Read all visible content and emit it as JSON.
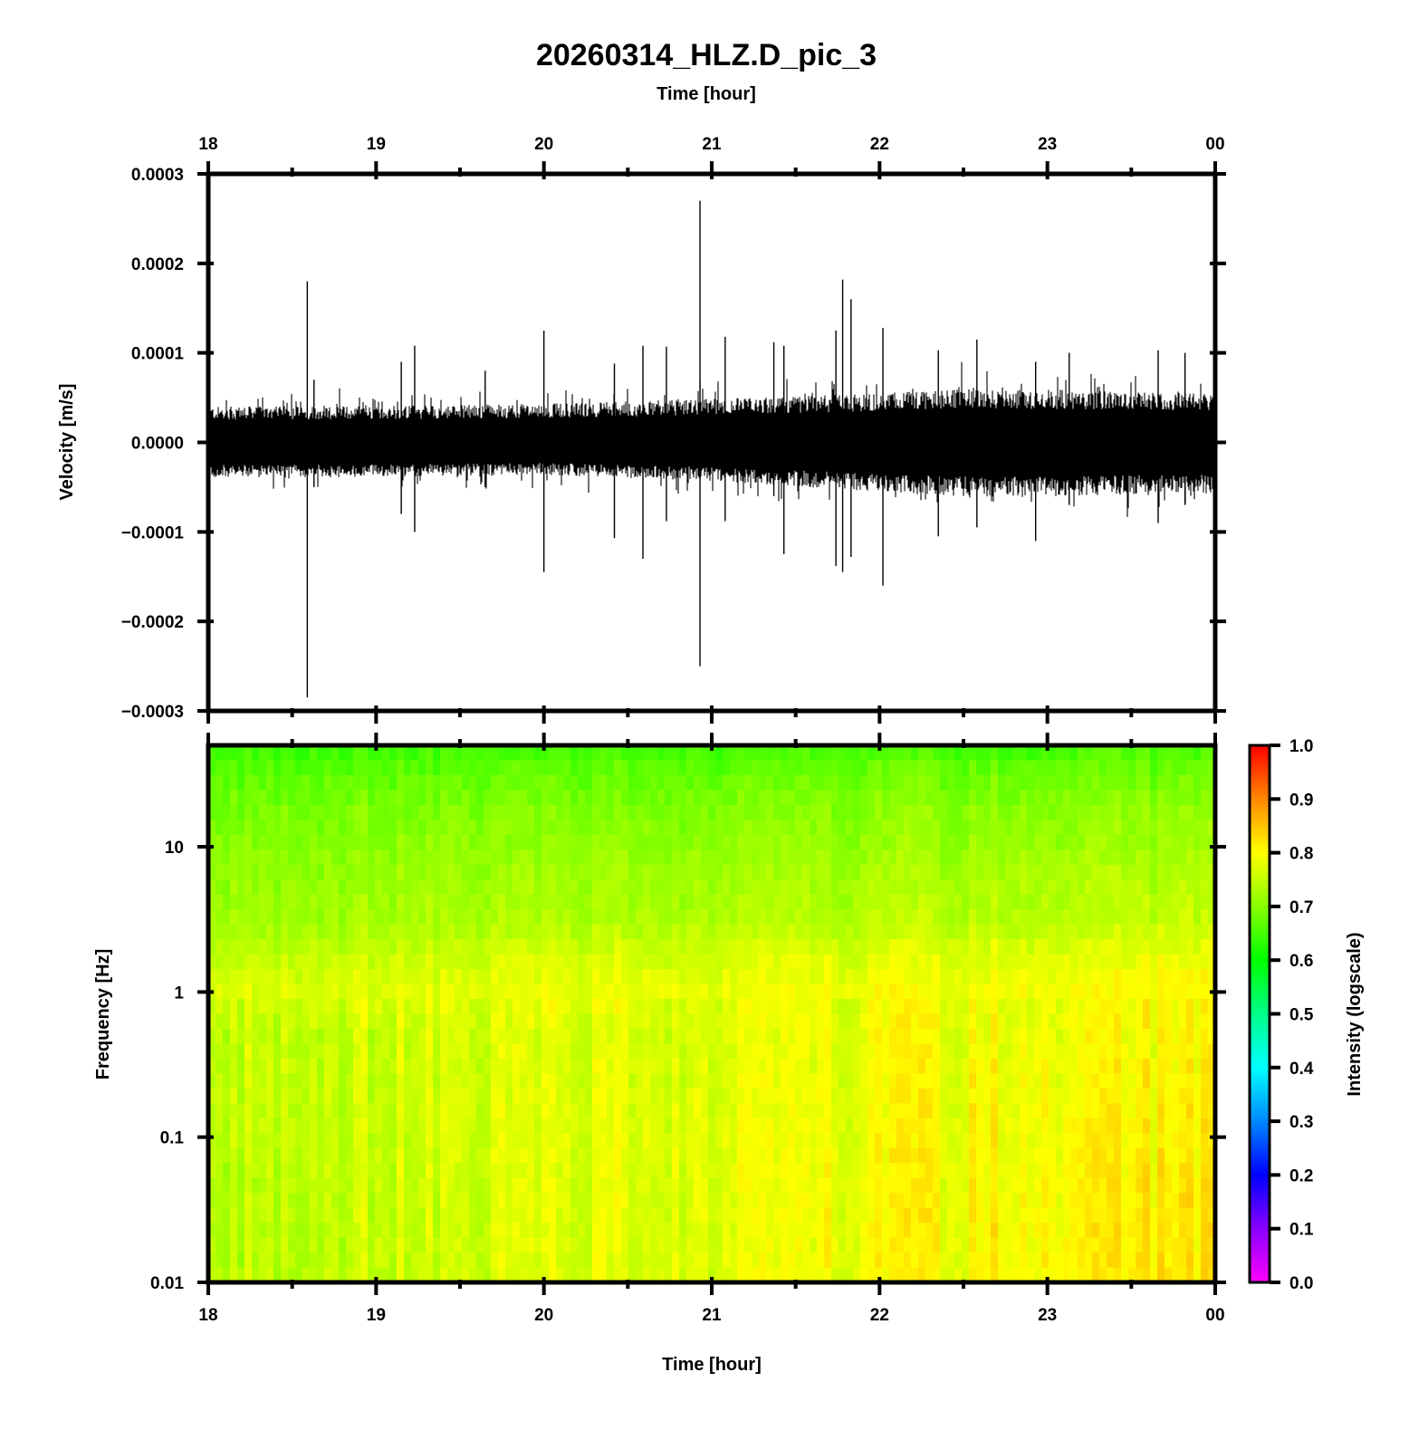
{
  "chart_data": [
    {
      "type": "line",
      "title": "20260314_HLZ.D_pic_3",
      "top_axis_label": "Time [hour]",
      "ylabel": "Velocity [m/s]",
      "x_ticks": [
        "18",
        "19",
        "20",
        "21",
        "22",
        "23",
        "00"
      ],
      "xlim": [
        18,
        24
      ],
      "ylim": [
        -0.0003,
        0.0003
      ],
      "y_ticks": [
        "0.0003",
        "0.0002",
        "0.0001",
        "0.0000",
        "−0.0001",
        "−0.0002",
        "−0.0003"
      ],
      "line_color": "#000000",
      "noise_envelope": {
        "x": [
          18.0,
          19.0,
          20.0,
          20.5,
          21.0,
          21.5,
          22.0,
          22.5,
          23.0,
          23.5,
          24.0
        ],
        "upper": [
          3.5e-05,
          3.6e-05,
          3.8e-05,
          4e-05,
          4.3e-05,
          4.5e-05,
          4.9e-05,
          5.2e-05,
          5.2e-05,
          5e-05,
          4.8e-05
        ],
        "lower": [
          -3.5e-05,
          -3.4e-05,
          -3.2e-05,
          -3.5e-05,
          -3.8e-05,
          -4.3e-05,
          -4.9e-05,
          -5.3e-05,
          -5.3e-05,
          -5.1e-05,
          -5e-05
        ]
      },
      "spikes": [
        {
          "x": 18.59,
          "max": 0.00018,
          "min": -0.000285
        },
        {
          "x": 18.63,
          "max": 7e-05,
          "min": -5e-05
        },
        {
          "x": 19.15,
          "max": 9e-05,
          "min": -8e-05
        },
        {
          "x": 19.23,
          "max": 0.000108,
          "min": -0.0001
        },
        {
          "x": 19.65,
          "max": 8e-05,
          "min": -5e-05
        },
        {
          "x": 20.0,
          "max": 0.000125,
          "min": -0.000145
        },
        {
          "x": 20.42,
          "max": 8.8e-05,
          "min": -0.000107
        },
        {
          "x": 20.59,
          "max": 0.000108,
          "min": -0.00013
        },
        {
          "x": 20.73,
          "max": 0.000107,
          "min": -8.8e-05
        },
        {
          "x": 20.93,
          "max": 0.00027,
          "min": -0.00025
        },
        {
          "x": 21.08,
          "max": 0.000118,
          "min": -8.8e-05
        },
        {
          "x": 21.37,
          "max": 0.000112,
          "min": -6e-05
        },
        {
          "x": 21.43,
          "max": 0.000108,
          "min": -0.000125
        },
        {
          "x": 21.74,
          "max": 0.000125,
          "min": -0.000138
        },
        {
          "x": 21.78,
          "max": 0.000182,
          "min": -0.000145
        },
        {
          "x": 21.83,
          "max": 0.00016,
          "min": -0.000128
        },
        {
          "x": 22.02,
          "max": 0.000128,
          "min": -0.00016
        },
        {
          "x": 22.35,
          "max": 0.000103,
          "min": -0.000105
        },
        {
          "x": 22.58,
          "max": 0.000115,
          "min": -9.5e-05
        },
        {
          "x": 22.93,
          "max": 9e-05,
          "min": -0.00011
        },
        {
          "x": 23.13,
          "max": 0.0001,
          "min": -7e-05
        },
        {
          "x": 23.66,
          "max": 0.000103,
          "min": -9e-05
        },
        {
          "x": 23.82,
          "max": 0.0001,
          "min": -7e-05
        }
      ]
    },
    {
      "type": "heatmap",
      "xlabel": "Time [hour]",
      "ylabel": "Frequency [Hz]",
      "x_ticks": [
        "18",
        "19",
        "20",
        "21",
        "22",
        "23",
        "00"
      ],
      "xlim": [
        18,
        24
      ],
      "y_scale": "log",
      "ylim": [
        0.01,
        50
      ],
      "y_ticks": [
        "10",
        "1",
        "0.1",
        "0.01"
      ],
      "intensity_profile": {
        "freq": [
          0.01,
          0.1,
          0.5,
          1.0,
          3.0,
          10.0,
          50.0
        ],
        "early": [
          0.74,
          0.75,
          0.75,
          0.77,
          0.72,
          0.7,
          0.64
        ],
        "late": [
          0.82,
          0.81,
          0.8,
          0.8,
          0.75,
          0.72,
          0.65
        ]
      },
      "colorbar": {
        "label": "Intensity (logscale)",
        "ticks": [
          "1.0",
          "0.9",
          "0.8",
          "0.7",
          "0.6",
          "0.5",
          "0.4",
          "0.3",
          "0.2",
          "0.1",
          "0.0"
        ],
        "range": [
          0.0,
          1.0
        ],
        "colors": [
          "#ff00ff",
          "#8800ff",
          "#0000ff",
          "#0088ff",
          "#00ffff",
          "#00ff88",
          "#00ff00",
          "#88ff00",
          "#ffff00",
          "#ff8800",
          "#ff0000"
        ]
      }
    }
  ]
}
